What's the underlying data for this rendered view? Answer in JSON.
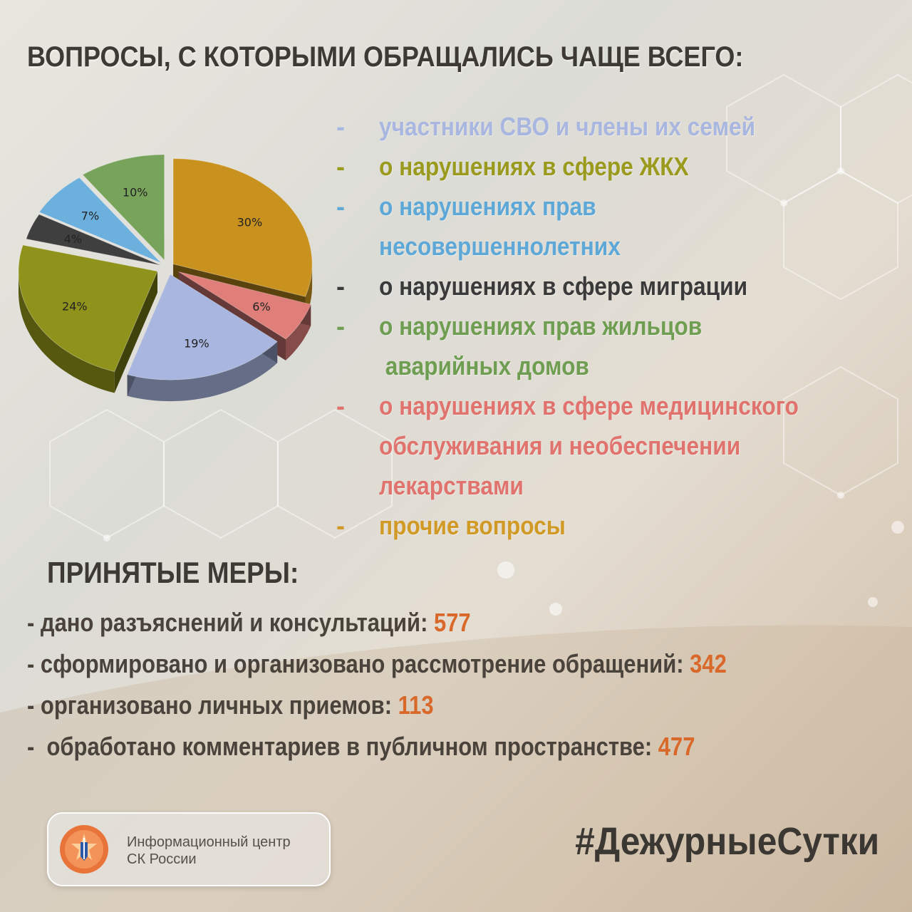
{
  "heading": "ВОПРОСЫ, С КОТОРЫМИ ОБРАЩАЛИСЬ ЧАЩЕ ВСЕГО:",
  "chart_data": {
    "type": "pie",
    "title": "",
    "slices": [
      {
        "label": "прочие вопросы",
        "value": 30,
        "value_label": "30%",
        "color": "#c9921f"
      },
      {
        "label": "о нарушениях в сфере медицинского обслуживания и необеспечении лекарствами",
        "value": 6,
        "value_label": "6%",
        "color": "#e07f7a"
      },
      {
        "label": "участники СВО и члены их семей",
        "value": 19,
        "value_label": "19%",
        "color": "#a9b7e0"
      },
      {
        "label": "о нарушениях в сфере ЖКХ",
        "value": 24,
        "value_label": "24%",
        "color": "#8f931b"
      },
      {
        "label": "о нарушениях в сфере миграции",
        "value": 4,
        "value_label": "4%",
        "color": "#3f3f3f"
      },
      {
        "label": "о нарушениях прав несовершеннолетних",
        "value": 7,
        "value_label": "7%",
        "color": "#6cb0de"
      },
      {
        "label": "о нарушениях прав жильцов аварийных домов",
        "value": 10,
        "value_label": "10%",
        "color": "#78a35a"
      }
    ]
  },
  "legend": [
    {
      "dash": "-",
      "lines": [
        "участники СВО и члены их семей"
      ],
      "color": "#a9b7e0"
    },
    {
      "dash": "-",
      "lines": [
        "о нарушениях в сфере ЖКХ"
      ],
      "color": "#9a9a1f"
    },
    {
      "dash": "-",
      "lines": [
        "о нарушениях прав",
        "несовершеннолетних"
      ],
      "color": "#5ea8d8"
    },
    {
      "dash": "-",
      "lines": [
        "о нарушениях в сфере миграции"
      ],
      "color": "#3a3a3a"
    },
    {
      "dash": "-",
      "lines": [
        "о нарушениях прав жильцов",
        " аварийных домов"
      ],
      "color": "#6f9e52"
    },
    {
      "dash": "-",
      "lines": [
        "о нарушениях в сфере медицинского",
        "обслуживания и необеспечении",
        "лекарствами"
      ],
      "color": "#e0736e"
    },
    {
      "dash": "-",
      "lines": [
        "прочие вопросы"
      ],
      "color": "#d19a26"
    }
  ],
  "measures_title": "ПРИНЯТЫЕ МЕРЫ:",
  "measures": [
    {
      "label": "- дано разъяснений и консультаций: ",
      "value": "577"
    },
    {
      "label": "- сформировано и организовано рассмотрение обращений: ",
      "value": "342"
    },
    {
      "label": "- организовано личных приемов: ",
      "value": "113"
    },
    {
      "label": "-  обработано комментариев в публичном пространстве: ",
      "value": "477"
    }
  ],
  "logo": {
    "line1": "Информационный центр",
    "line2": "СК России",
    "emblem_icon": "sk-russia-emblem-icon"
  },
  "hashtag": "#ДежурныеСутки"
}
